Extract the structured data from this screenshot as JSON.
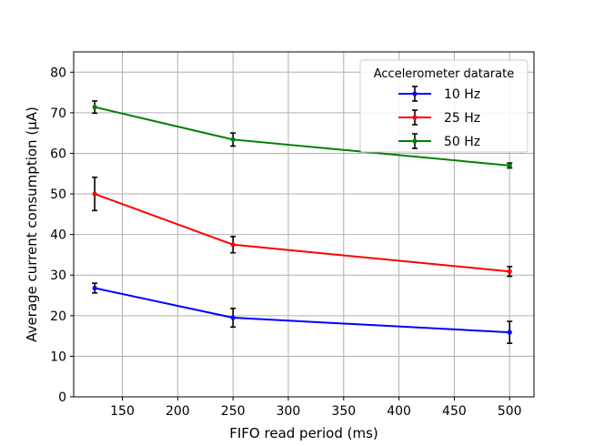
{
  "chart_data": {
    "type": "line",
    "xlabel": "FIFO read period (ms)",
    "ylabel": "Average current consumption (μA)",
    "xlim": [
      106,
      522
    ],
    "ylim": [
      0,
      85
    ],
    "xticks": [
      150,
      200,
      250,
      300,
      350,
      400,
      450,
      500
    ],
    "yticks": [
      0,
      10,
      20,
      30,
      40,
      50,
      60,
      70,
      80
    ],
    "grid": true,
    "legend": {
      "title": "Accelerometer datarate",
      "placement": "top-right"
    },
    "x": [
      125,
      250,
      500
    ],
    "series": [
      {
        "name": "10 Hz",
        "color": "#0000ff",
        "values": [
          26.8,
          19.5,
          15.9
        ],
        "errors": [
          1.2,
          2.3,
          2.7
        ]
      },
      {
        "name": "25 Hz",
        "color": "#ff0000",
        "values": [
          50.0,
          37.5,
          30.9
        ],
        "errors": [
          4.1,
          2.0,
          1.2
        ]
      },
      {
        "name": "50 Hz",
        "color": "#008000",
        "values": [
          71.4,
          63.4,
          57.0
        ],
        "errors": [
          1.5,
          1.6,
          0.6
        ]
      }
    ]
  }
}
